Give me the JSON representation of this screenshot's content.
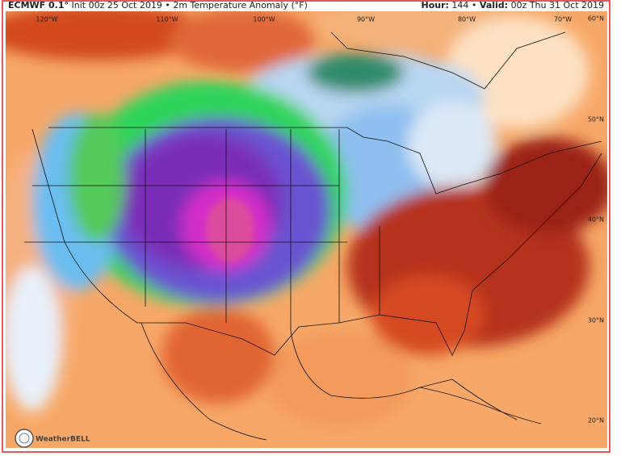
{
  "header": {
    "model": "ECMWF 0.1°",
    "description": "Init 00z 25 Oct 2019 • 2m Temperature Anomaly (°F)",
    "hour_label": "Hour:",
    "hour": "144",
    "separator": "•",
    "valid_label": "Valid:",
    "valid": "00z Thu 31 Oct 2019"
  },
  "map": {
    "longitude_labels": [
      "120°W",
      "110°W",
      "100°W",
      "90°W",
      "80°W",
      "70°W"
    ],
    "latitude_labels": [
      "60°N",
      "50°N",
      "40°N",
      "30°N",
      "20°N"
    ],
    "logo": "WeatherBELL"
  }
}
